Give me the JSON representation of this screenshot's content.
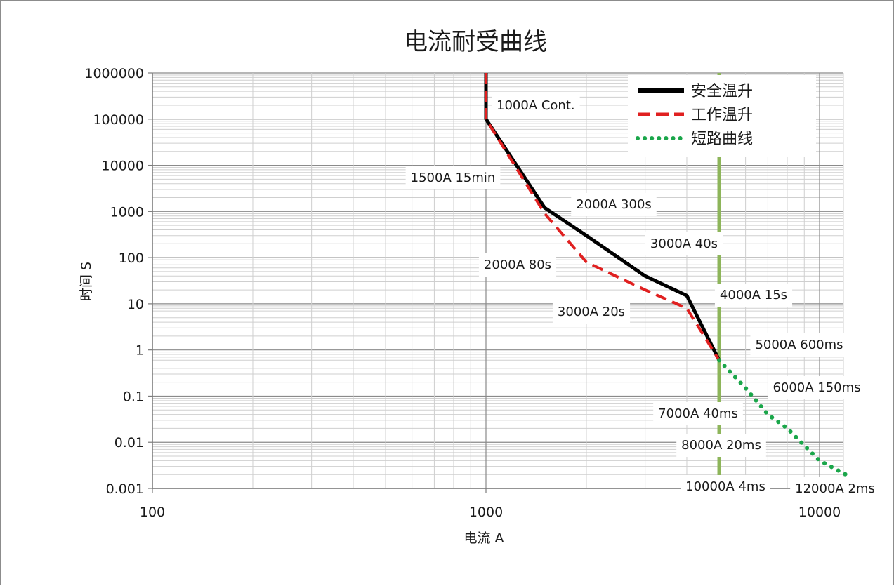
{
  "chart_data": {
    "type": "line",
    "title": "电流耐受曲线",
    "xlabel": "电流 A",
    "ylabel": "时间 S",
    "x_scale": "log",
    "y_scale": "log",
    "xlim": [
      100,
      12000
    ],
    "ylim": [
      0.001,
      1000000
    ],
    "x_ticks": [
      100,
      1000,
      10000
    ],
    "x_tick_labels": [
      "100",
      "1000",
      "10000"
    ],
    "y_ticks": [
      0.001,
      0.01,
      0.1,
      1,
      10,
      100,
      1000,
      10000,
      100000,
      1000000
    ],
    "y_tick_labels": [
      "0.001",
      "0.01",
      "0.1",
      "1",
      "10",
      "100",
      "1000",
      "10000",
      "100000",
      "1000000"
    ],
    "grid": true,
    "legend_position": "top-right",
    "series": [
      {
        "name": "安全温升",
        "color": "#000000",
        "style": "solid",
        "points": [
          [
            1000,
            1000000
          ],
          [
            1000,
            100000
          ],
          [
            1500,
            1200
          ],
          [
            2000,
            300
          ],
          [
            3000,
            40
          ],
          [
            4000,
            15
          ],
          [
            5000,
            0.6
          ]
        ]
      },
      {
        "name": "工作温升",
        "color": "#e02020",
        "style": "dashed",
        "points": [
          [
            1000,
            1000000
          ],
          [
            1000,
            100000
          ],
          [
            1500,
            900
          ],
          [
            2000,
            80
          ],
          [
            3000,
            20
          ],
          [
            4000,
            8
          ],
          [
            5000,
            0.6
          ]
        ]
      },
      {
        "name": "短路曲线",
        "color": "#1aa64a",
        "style": "dotted",
        "points": [
          [
            5000,
            0.6
          ],
          [
            6000,
            0.15
          ],
          [
            7000,
            0.04
          ],
          [
            8000,
            0.02
          ],
          [
            10000,
            0.004
          ],
          [
            12000,
            0.002
          ]
        ]
      }
    ],
    "reference_line": {
      "x": 5000,
      "color": "#8db55a"
    },
    "annotations": [
      {
        "text": "1000A Cont."
      },
      {
        "text": "1500A 15min"
      },
      {
        "text": "2000A 300s"
      },
      {
        "text": "2000A 80s"
      },
      {
        "text": "3000A 40s"
      },
      {
        "text": "3000A 20s"
      },
      {
        "text": "4000A 15s"
      },
      {
        "text": "5000A 600ms"
      },
      {
        "text": "6000A 150ms"
      },
      {
        "text": "7000A 40ms"
      },
      {
        "text": "8000A 20ms"
      },
      {
        "text": "10000A 4ms"
      },
      {
        "text": "12000A 2ms"
      }
    ]
  }
}
